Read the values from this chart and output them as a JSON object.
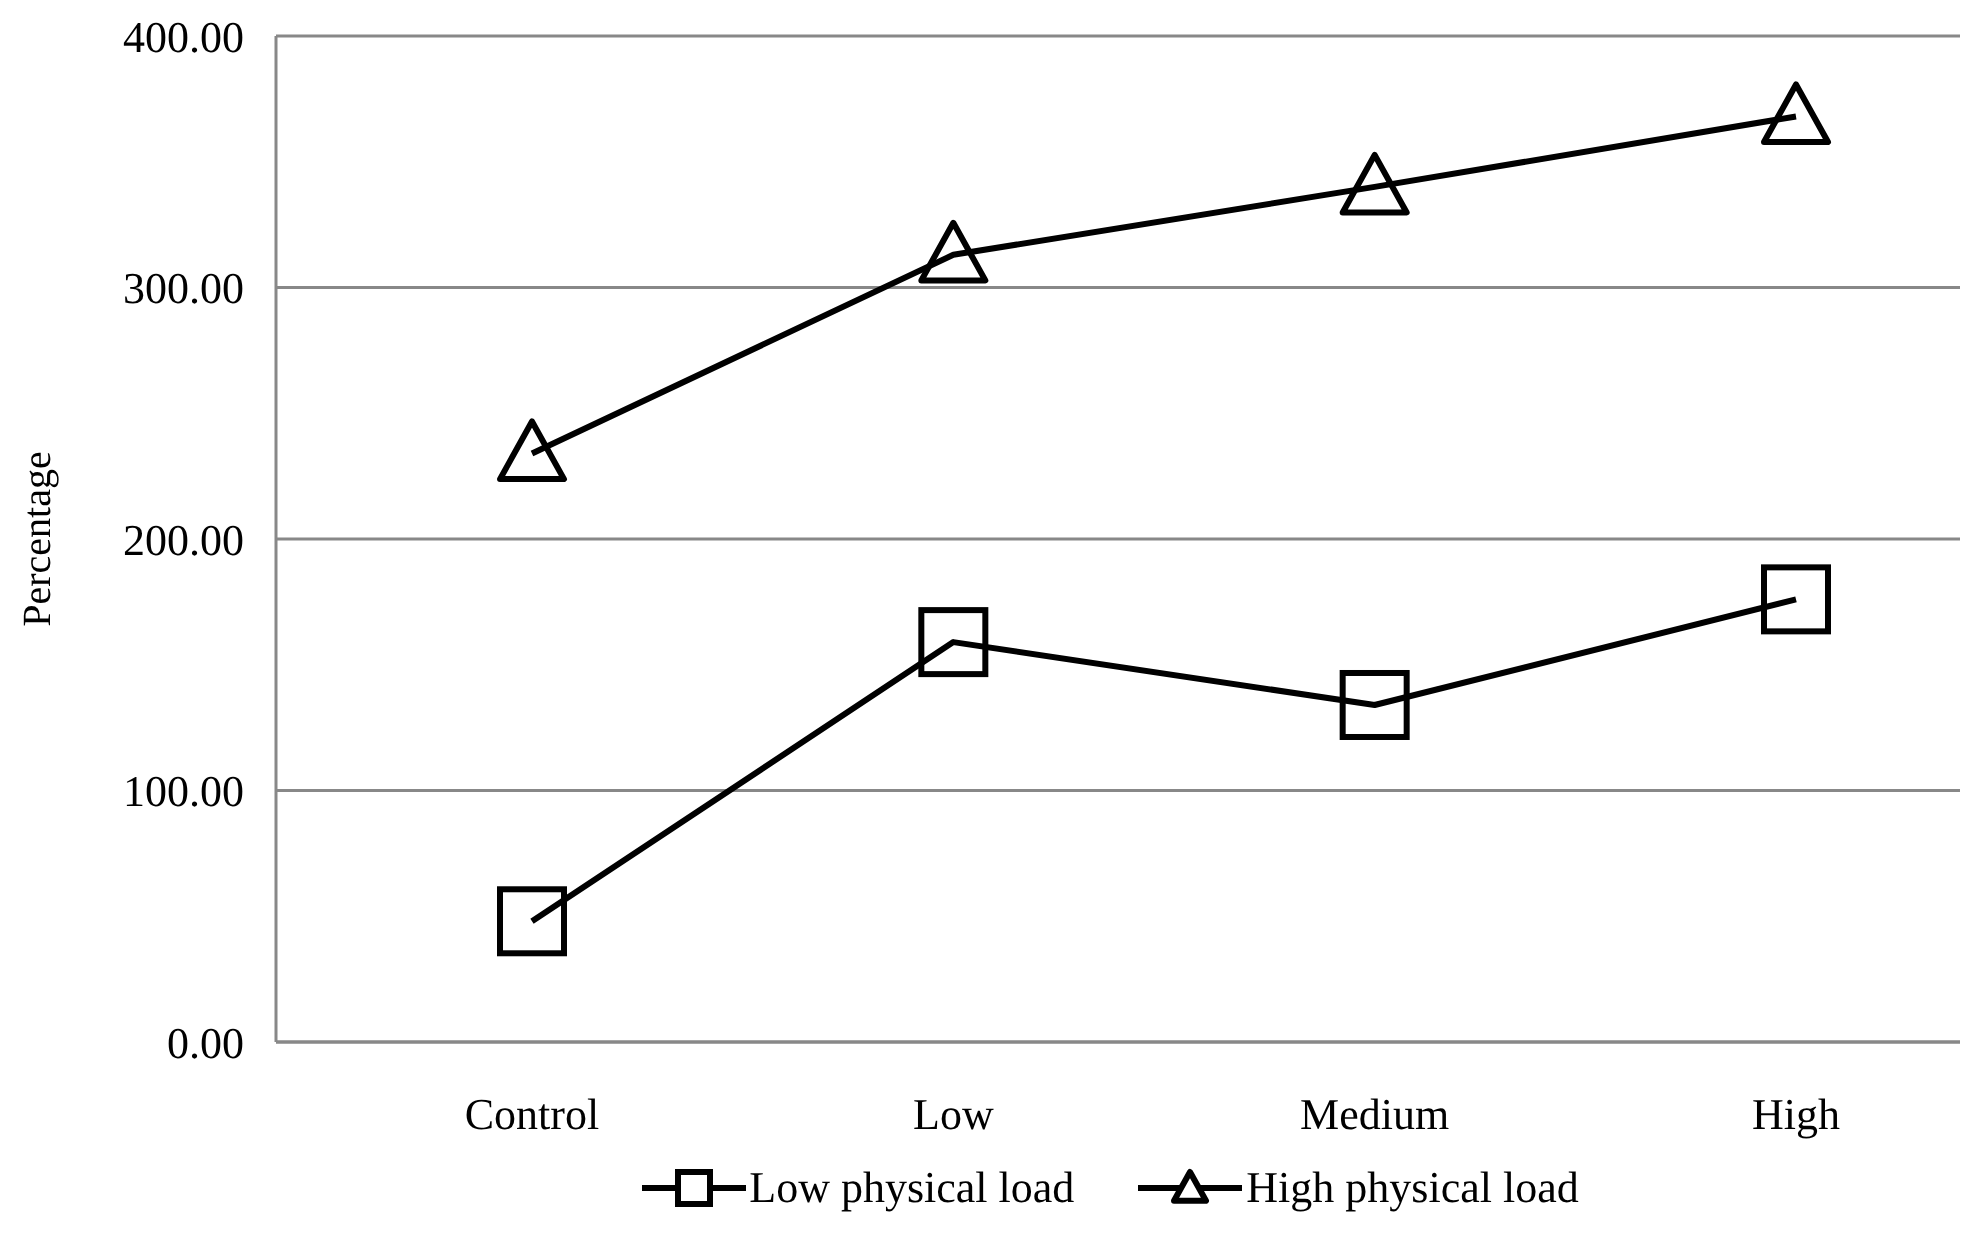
{
  "chart_data": {
    "type": "line",
    "ylabel": "Percentage",
    "categories": [
      "Control",
      "Low",
      "Medium",
      "High"
    ],
    "series": [
      {
        "name": "Low physical load",
        "color": "#000000",
        "marker": "square",
        "values": [
          48,
          159,
          134,
          176
        ]
      },
      {
        "name": "High physical load",
        "color": "#000000",
        "marker": "triangle",
        "values": [
          234,
          313,
          340,
          368
        ]
      }
    ],
    "ylim": [
      0,
      400
    ],
    "yticks": [
      {
        "value": 0,
        "label": "0.00"
      },
      {
        "value": 100,
        "label": "100.00"
      },
      {
        "value": 200,
        "label": "200.00"
      },
      {
        "value": 300,
        "label": "300.00"
      },
      {
        "value": 400,
        "label": "400.00"
      }
    ],
    "grid": "y",
    "legend": "bottom",
    "line_style": "solid"
  }
}
